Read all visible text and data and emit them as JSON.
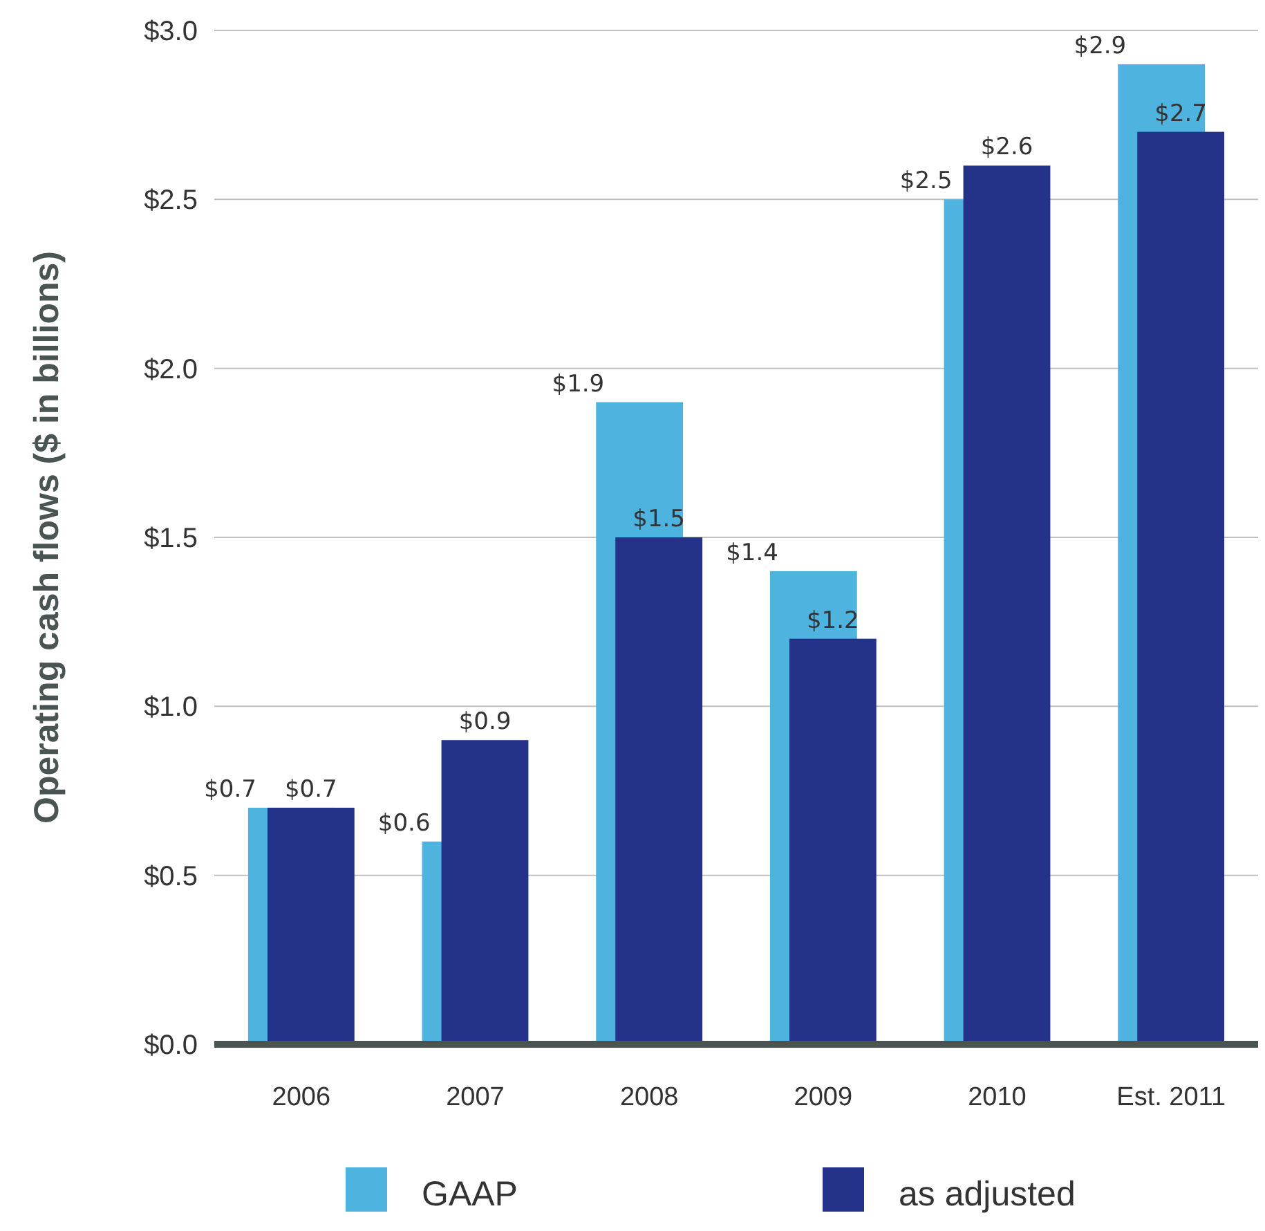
{
  "chart_data": {
    "type": "bar",
    "ylabel": "Operating cash flows ($ in billions)",
    "categories": [
      "2006",
      "2007",
      "2008",
      "2009",
      "2010",
      "Est. 2011"
    ],
    "series": [
      {
        "name": "GAAP",
        "color": "#4fb3e0",
        "values": [
          0.7,
          0.6,
          1.9,
          1.4,
          2.5,
          2.9
        ],
        "value_labels": [
          "$0.7",
          "$0.6",
          "$1.9",
          "$1.4",
          "$2.5",
          "$2.9"
        ]
      },
      {
        "name": "as adjusted",
        "color": "#253289",
        "values": [
          0.7,
          0.9,
          1.5,
          1.2,
          2.6,
          2.7
        ],
        "value_labels": [
          "$0.7",
          "$0.9",
          "$1.5",
          "$1.2",
          "$2.6",
          "$2.7"
        ]
      }
    ],
    "ylim": [
      0,
      3
    ],
    "yticks": [
      {
        "value": 0,
        "label": "$0.0"
      },
      {
        "value": 0.5,
        "label": "$0.5"
      },
      {
        "value": 1,
        "label": "$1.0"
      },
      {
        "value": 1.5,
        "label": "$1.5"
      },
      {
        "value": 2,
        "label": "$2.0"
      },
      {
        "value": 2.5,
        "label": "$2.5"
      },
      {
        "value": 3,
        "label": "$3.0"
      }
    ],
    "grid": "y",
    "legend": "bottom"
  }
}
